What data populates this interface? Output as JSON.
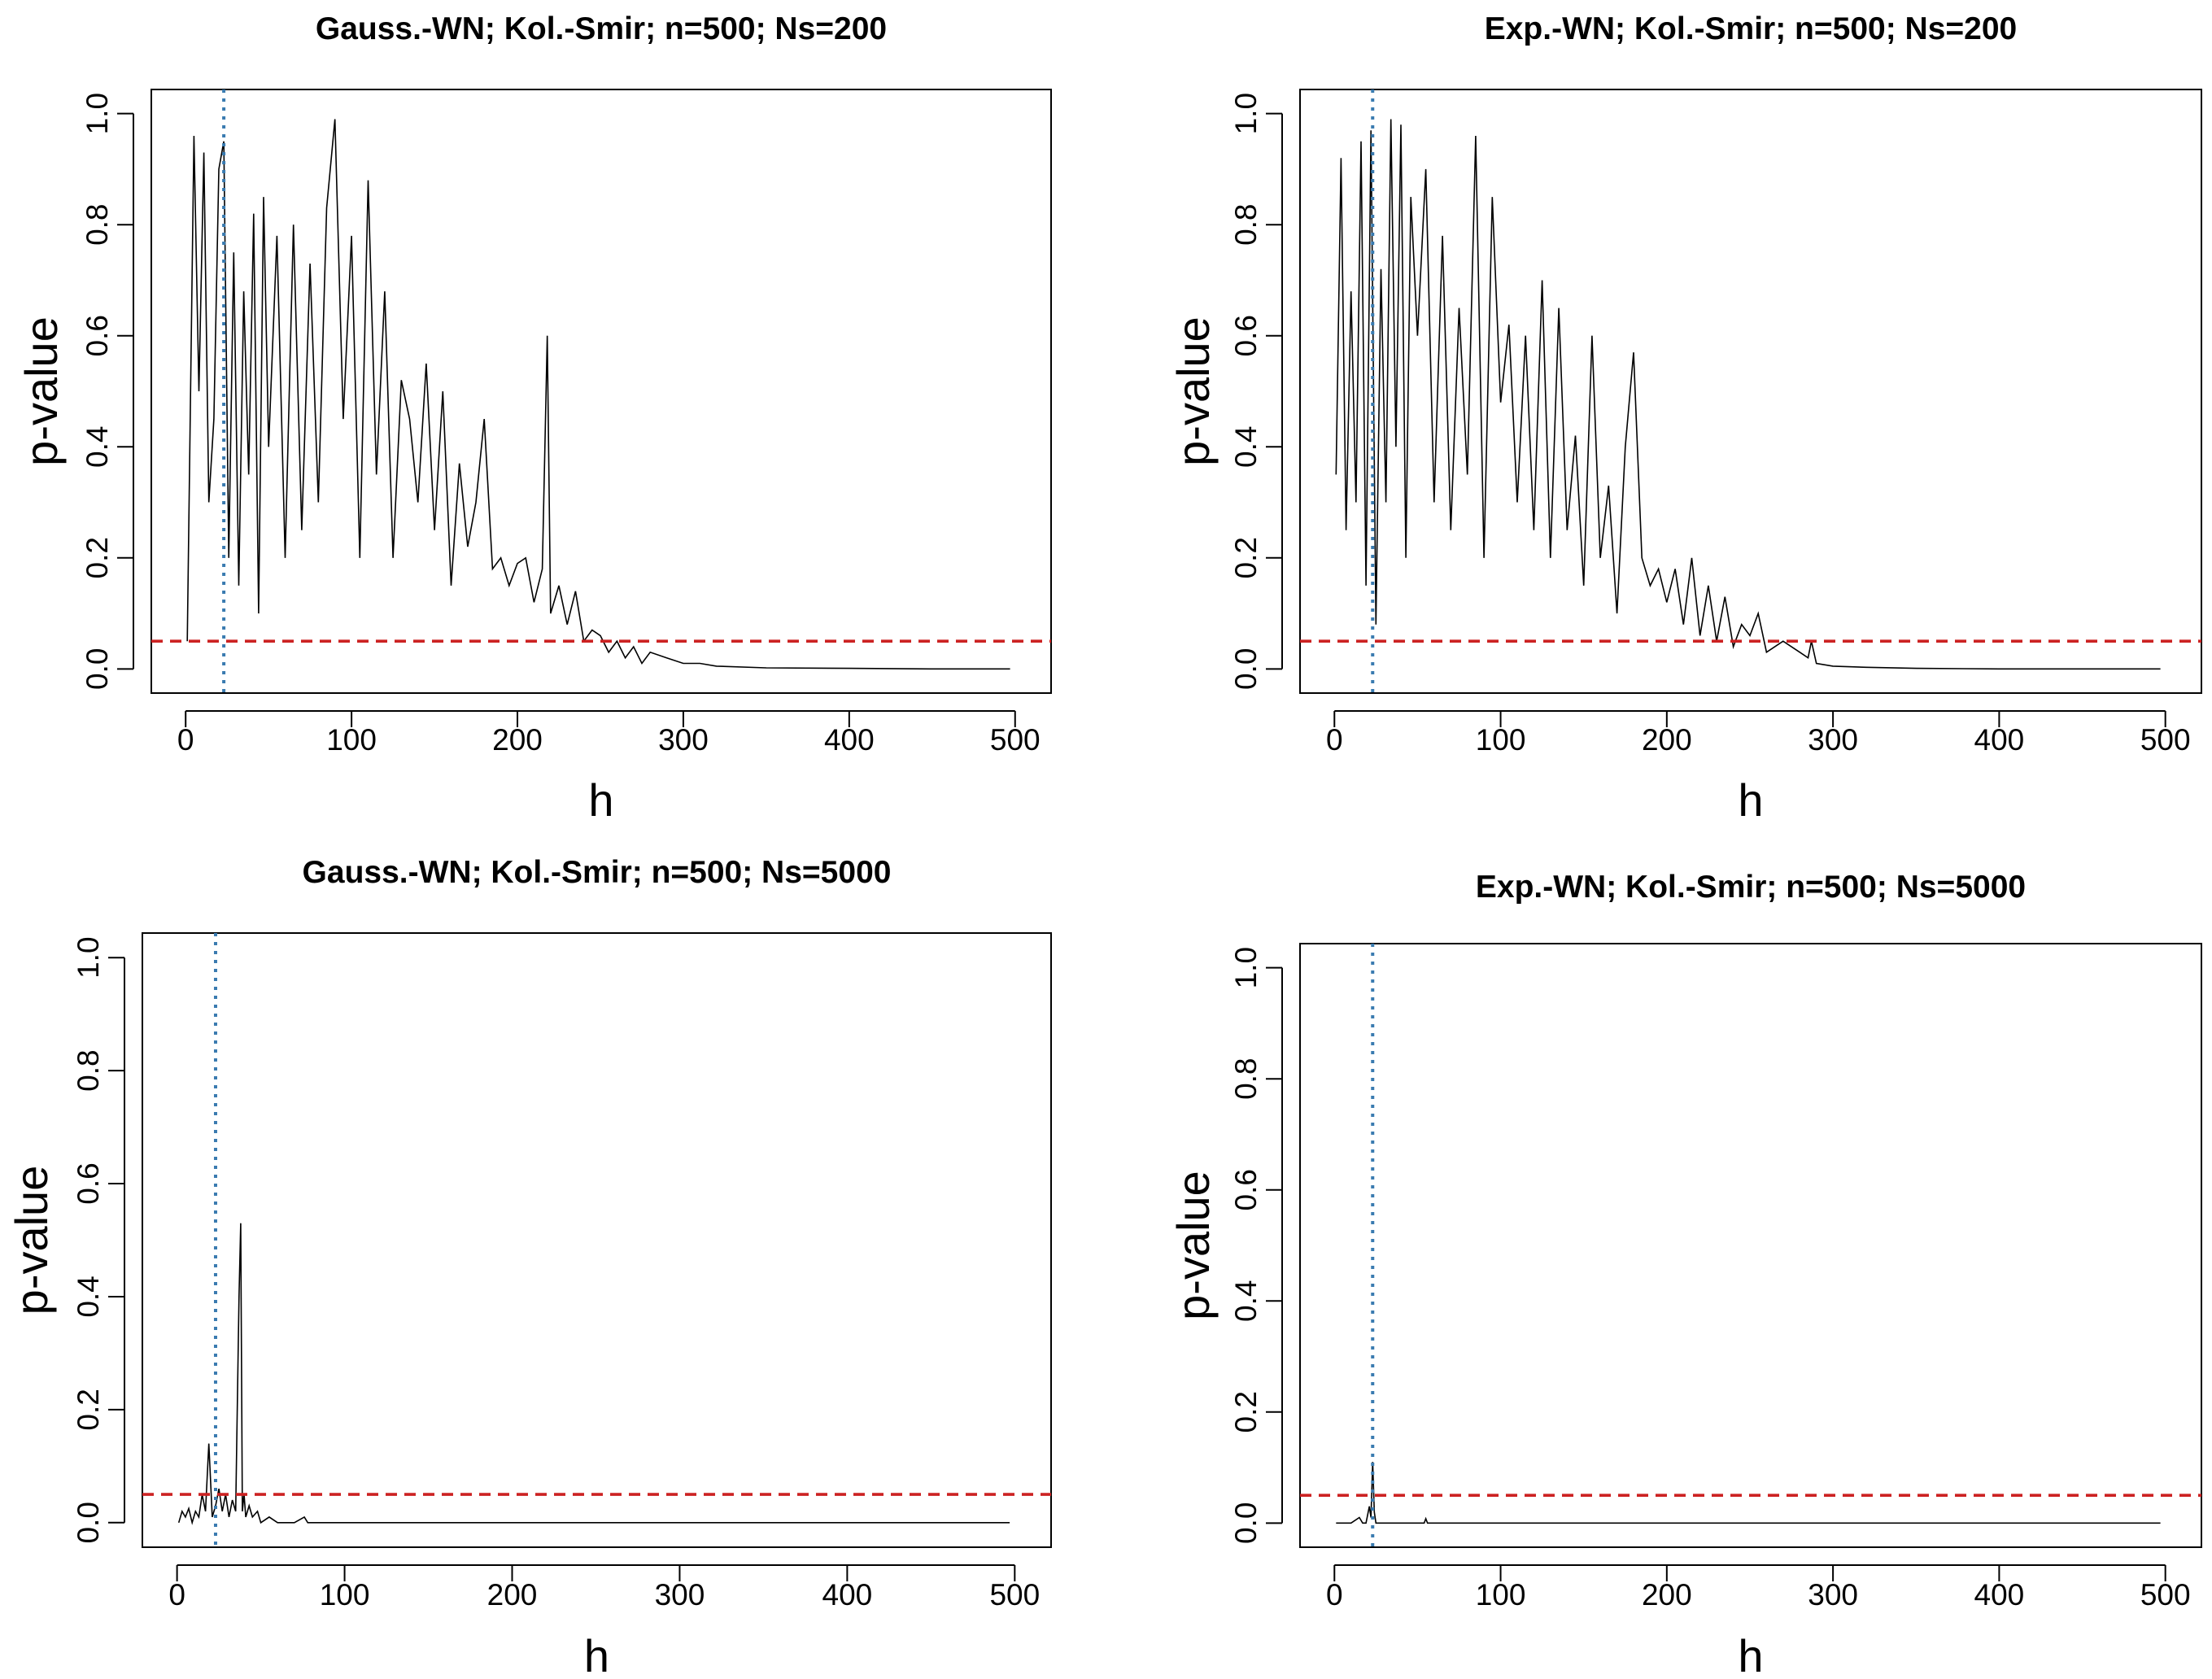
{
  "figure": {
    "panels": [
      {
        "title": "Gauss.-WN;  Kol.-Smir;  n=500;  Ns=200",
        "xlabel": "h",
        "ylabel": "p-value",
        "x_ticks": [
          "0",
          "100",
          "200",
          "300",
          "400",
          "500"
        ],
        "y_ticks": [
          "0.0",
          "0.2",
          "0.4",
          "0.6",
          "0.8",
          "1.0"
        ]
      },
      {
        "title": "Exp.-WN;  Kol.-Smir;  n=500;  Ns=200",
        "xlabel": "h",
        "ylabel": "p-value",
        "x_ticks": [
          "0",
          "100",
          "200",
          "300",
          "400",
          "500"
        ],
        "y_ticks": [
          "0.0",
          "0.2",
          "0.4",
          "0.6",
          "0.8",
          "1.0"
        ]
      },
      {
        "title": "Gauss.-WN;  Kol.-Smir;  n=500;  Ns=5000",
        "xlabel": "h",
        "ylabel": "p-value",
        "x_ticks": [
          "0",
          "100",
          "200",
          "300",
          "400",
          "500"
        ],
        "y_ticks": [
          "0.0",
          "0.2",
          "0.4",
          "0.6",
          "0.8",
          "1.0"
        ]
      },
      {
        "title": "Exp.-WN;  Kol.-Smir;  n=500;  Ns=5000",
        "xlabel": "h",
        "ylabel": "p-value",
        "x_ticks": [
          "0",
          "100",
          "200",
          "300",
          "400",
          "500"
        ],
        "y_ticks": [
          "0.0",
          "0.2",
          "0.4",
          "0.6",
          "0.8",
          "1.0"
        ]
      }
    ]
  },
  "chart_data": [
    {
      "type": "line",
      "title": "Gauss.-WN;  Kol.-Smir;  n=500;  Ns=200",
      "xlabel": "h",
      "ylabel": "p-value",
      "xlim": [
        1,
        500
      ],
      "ylim": [
        0,
        1
      ],
      "series_color": "#000000",
      "ref_hline": {
        "y": 0.05,
        "color": "#cc2222",
        "style": "dashed"
      },
      "ref_vline": {
        "x": 23,
        "color": "#3a7bb0",
        "style": "dotted"
      },
      "x": [
        1,
        5,
        8,
        11,
        14,
        17,
        20,
        23,
        26,
        29,
        32,
        35,
        38,
        41,
        44,
        47,
        50,
        55,
        60,
        65,
        70,
        75,
        80,
        85,
        90,
        95,
        100,
        105,
        110,
        115,
        120,
        125,
        130,
        135,
        140,
        145,
        150,
        155,
        160,
        165,
        170,
        175,
        180,
        185,
        190,
        195,
        200,
        205,
        210,
        215,
        218,
        220,
        225,
        230,
        235,
        240,
        245,
        250,
        255,
        260,
        265,
        270,
        275,
        280,
        290,
        300,
        310,
        320,
        350,
        400,
        450,
        497
      ],
      "values": [
        0.05,
        0.96,
        0.5,
        0.93,
        0.3,
        0.45,
        0.9,
        0.95,
        0.2,
        0.75,
        0.15,
        0.68,
        0.35,
        0.82,
        0.1,
        0.85,
        0.4,
        0.78,
        0.2,
        0.8,
        0.25,
        0.73,
        0.3,
        0.83,
        0.99,
        0.45,
        0.78,
        0.2,
        0.88,
        0.35,
        0.68,
        0.2,
        0.52,
        0.45,
        0.3,
        0.55,
        0.25,
        0.5,
        0.15,
        0.37,
        0.22,
        0.3,
        0.45,
        0.18,
        0.2,
        0.15,
        0.19,
        0.2,
        0.12,
        0.18,
        0.6,
        0.1,
        0.15,
        0.08,
        0.14,
        0.05,
        0.07,
        0.06,
        0.03,
        0.05,
        0.02,
        0.04,
        0.01,
        0.03,
        0.02,
        0.01,
        0.01,
        0.005,
        0.002,
        0.001,
        0.0,
        0.0
      ]
    },
    {
      "type": "line",
      "title": "Exp.-WN;  Kol.-Smir;  n=500;  Ns=200",
      "xlabel": "h",
      "ylabel": "p-value",
      "xlim": [
        1,
        500
      ],
      "ylim": [
        0,
        1
      ],
      "series_color": "#000000",
      "ref_hline": {
        "y": 0.05,
        "color": "#cc2222",
        "style": "dashed"
      },
      "ref_vline": {
        "x": 23,
        "color": "#3a7bb0",
        "style": "dotted"
      },
      "x": [
        1,
        4,
        7,
        10,
        13,
        16,
        19,
        22,
        25,
        28,
        31,
        34,
        37,
        40,
        43,
        46,
        50,
        55,
        60,
        65,
        70,
        75,
        80,
        85,
        90,
        95,
        100,
        105,
        110,
        115,
        120,
        125,
        130,
        135,
        140,
        145,
        150,
        155,
        160,
        165,
        170,
        175,
        180,
        185,
        190,
        195,
        200,
        205,
        210,
        215,
        220,
        225,
        230,
        235,
        240,
        245,
        250,
        255,
        260,
        270,
        280,
        285,
        287,
        290,
        300,
        320,
        350,
        400,
        450,
        497
      ],
      "values": [
        0.35,
        0.92,
        0.25,
        0.68,
        0.3,
        0.95,
        0.15,
        0.97,
        0.08,
        0.72,
        0.3,
        0.99,
        0.4,
        0.98,
        0.2,
        0.85,
        0.6,
        0.9,
        0.3,
        0.78,
        0.25,
        0.65,
        0.35,
        0.96,
        0.2,
        0.85,
        0.48,
        0.62,
        0.3,
        0.6,
        0.25,
        0.7,
        0.2,
        0.65,
        0.25,
        0.42,
        0.15,
        0.6,
        0.2,
        0.33,
        0.1,
        0.4,
        0.57,
        0.2,
        0.15,
        0.18,
        0.12,
        0.18,
        0.08,
        0.2,
        0.06,
        0.15,
        0.05,
        0.13,
        0.04,
        0.08,
        0.06,
        0.1,
        0.03,
        0.05,
        0.03,
        0.02,
        0.05,
        0.01,
        0.005,
        0.003,
        0.001,
        0.0,
        0.0,
        0.0
      ]
    },
    {
      "type": "line",
      "title": "Gauss.-WN;  Kol.-Smir;  n=500;  Ns=5000",
      "xlabel": "h",
      "ylabel": "p-value",
      "xlim": [
        1,
        500
      ],
      "ylim": [
        0,
        1
      ],
      "series_color": "#000000",
      "ref_hline": {
        "y": 0.05,
        "color": "#cc2222",
        "style": "dashed"
      },
      "ref_vline": {
        "x": 23,
        "color": "#3a7bb0",
        "style": "dotted"
      },
      "x": [
        1,
        3,
        5,
        7,
        9,
        11,
        13,
        15,
        17,
        19,
        21,
        23,
        25,
        27,
        29,
        31,
        33,
        35,
        37,
        38,
        39,
        40,
        41,
        43,
        45,
        48,
        50,
        55,
        60,
        70,
        76,
        78,
        90,
        120,
        200,
        300,
        400,
        497
      ],
      "values": [
        0.0,
        0.02,
        0.01,
        0.025,
        0.0,
        0.02,
        0.01,
        0.05,
        0.02,
        0.14,
        0.01,
        0.03,
        0.06,
        0.02,
        0.05,
        0.01,
        0.04,
        0.02,
        0.4,
        0.53,
        0.02,
        0.05,
        0.01,
        0.03,
        0.01,
        0.02,
        0.0,
        0.01,
        0.0,
        0.0,
        0.01,
        0.0,
        0.0,
        0.0,
        0.0,
        0.0,
        0.0,
        0.0
      ]
    },
    {
      "type": "line",
      "title": "Exp.-WN;  Kol.-Smir;  n=500;  Ns=5000",
      "xlabel": "h",
      "ylabel": "p-value",
      "xlim": [
        1,
        500
      ],
      "ylim": [
        0,
        1
      ],
      "series_color": "#000000",
      "ref_hline": {
        "y": 0.05,
        "color": "#cc2222",
        "style": "dashed"
      },
      "ref_vline": {
        "x": 23,
        "color": "#3a7bb0",
        "style": "dotted"
      },
      "x": [
        1,
        10,
        15,
        17,
        19,
        21,
        22,
        23,
        24,
        25,
        27,
        30,
        40,
        54,
        55,
        56,
        60,
        100,
        200,
        300,
        400,
        497
      ],
      "values": [
        0.0,
        0.0,
        0.01,
        0.0,
        0.0,
        0.03,
        0.01,
        0.11,
        0.02,
        0.0,
        0.0,
        0.0,
        0.0,
        0.0,
        0.008,
        0.0,
        0.0,
        0.0,
        0.0,
        0.0,
        0.0,
        0.0
      ]
    }
  ]
}
